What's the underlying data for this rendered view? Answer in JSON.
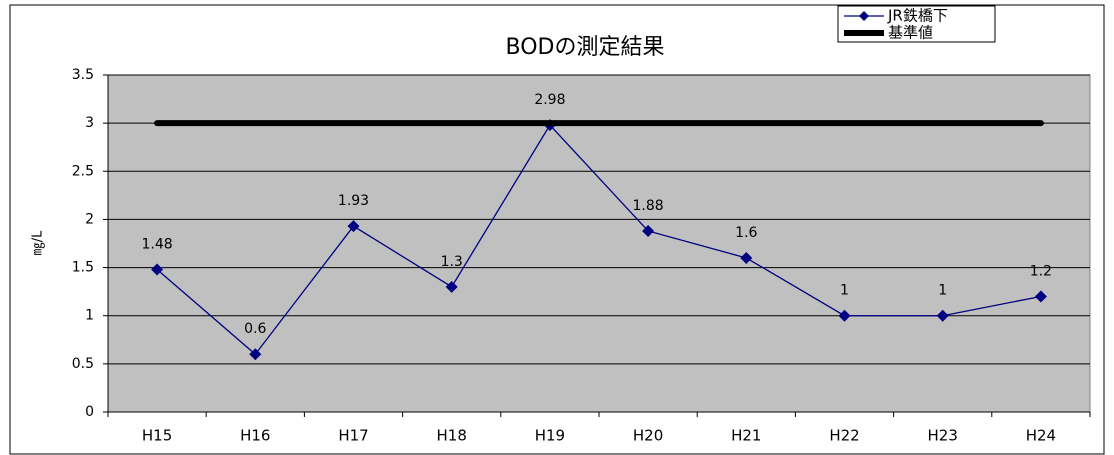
{
  "chart_data": {
    "type": "line",
    "title": "BODの測定結果",
    "y_label": "㎎/L",
    "categories": [
      "H15",
      "H16",
      "H17",
      "H18",
      "H19",
      "H20",
      "H21",
      "H22",
      "H23",
      "H24"
    ],
    "series": [
      {
        "name": "JR鉄橋下",
        "color": "#000080",
        "values": [
          1.48,
          0.6,
          1.93,
          1.3,
          2.98,
          1.88,
          1.6,
          1,
          1,
          1.2
        ]
      },
      {
        "name": "基準値",
        "color": "#000000",
        "values": [
          3,
          3,
          3,
          3,
          3,
          3,
          3,
          3,
          3,
          3
        ]
      }
    ],
    "ylim": [
      0,
      3.5
    ],
    "yticks": [
      0,
      0.5,
      1,
      1.5,
      2,
      2.5,
      3,
      3.5
    ],
    "grid": true,
    "legend": "top-right",
    "plot_background": "#c0c0c0"
  }
}
